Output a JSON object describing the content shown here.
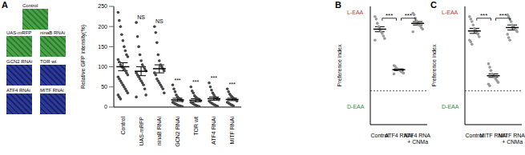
{
  "panel_labels": [
    "A",
    "B",
    "C"
  ],
  "images": [
    {
      "label": "Control",
      "color": "#3a9a3a"
    },
    {
      "label": "UAS-mRFP",
      "color": "#3a9a3a"
    },
    {
      "label": "ninaB RNAi",
      "color": "#3a9a3a"
    },
    {
      "label": "GCN2 RNAi",
      "color": "#1b2a8c"
    },
    {
      "label": "TOR wt",
      "color": "#1b2a8c"
    },
    {
      "label": "ATF4 RNAi",
      "color": "#1b2a8c"
    },
    {
      "label": "MITF RNAi",
      "color": "#1b2a8c"
    }
  ],
  "chart_data": [
    {
      "type": "scatter",
      "categories": [
        "Control",
        "UAS-mRFP",
        "ninaB RNAi",
        "GCN2 RNAi",
        "TOR wt",
        "ATF4 RNAi",
        "MITF RNAi"
      ],
      "ylabel": "Relative GFP intensity(%)",
      "ylim": [
        0,
        250
      ],
      "yticks": [
        0,
        50,
        100,
        150,
        200,
        250
      ],
      "color": "#444444",
      "points": [
        [
          235,
          215,
          200,
          180,
          165,
          150,
          140,
          130,
          125,
          118,
          112,
          105,
          100,
          98,
          95,
          90,
          85,
          80,
          75,
          70,
          65,
          60,
          55,
          50,
          45,
          40,
          35,
          30,
          25,
          20
        ],
        [
          210,
          175,
          150,
          130,
          115,
          105,
          100,
          95,
          90,
          85,
          80,
          75,
          70,
          65,
          60,
          55,
          45,
          30,
          25
        ],
        [
          200,
          185,
          160,
          130,
          115,
          105,
          100,
          95,
          90,
          85,
          80,
          70,
          65,
          60,
          55,
          50,
          45,
          35
        ],
        [
          55,
          45,
          38,
          30,
          25,
          22,
          20,
          18,
          15,
          12,
          10,
          8,
          7,
          5,
          4,
          3,
          2,
          1
        ],
        [
          50,
          40,
          35,
          28,
          25,
          22,
          20,
          18,
          15,
          12,
          10,
          8,
          6,
          5,
          3,
          2,
          1
        ],
        [
          60,
          50,
          42,
          35,
          30,
          25,
          22,
          20,
          18,
          15,
          12,
          10,
          8,
          6,
          5,
          3,
          2
        ],
        [
          45,
          38,
          32,
          28,
          25,
          22,
          20,
          18,
          15,
          12,
          10,
          8,
          6,
          5,
          3
        ]
      ],
      "means": [
        100,
        89,
        95,
        18,
        17,
        21,
        19
      ],
      "errors": [
        10,
        11,
        10,
        4,
        4,
        4,
        3
      ],
      "category_annotations": [
        null,
        "NS",
        "NS",
        "***",
        "***",
        "***",
        "***"
      ]
    },
    {
      "type": "scatter",
      "categories": [
        "Control",
        "ATF4 RNAi",
        "ATF4 RNAi + CNMa"
      ],
      "ylabel": "Preference index",
      "ylim": [
        -0.4,
        1
      ],
      "yticks": [],
      "tick_labels": "x",
      "hline": 0,
      "color": "#9a9a9a",
      "annotations": [
        {
          "text": "L-EAA",
          "color": "#d0312d"
        },
        {
          "text": "D-EAA",
          "color": "#2e8b3e"
        }
      ],
      "points": [
        [
          0.88,
          0.85,
          0.8,
          0.76,
          0.73,
          0.7,
          0.68,
          0.65,
          0.62,
          0.6
        ],
        [
          0.3,
          0.29,
          0.27,
          0.26,
          0.25,
          0.24,
          0.23,
          0.22,
          0.21,
          0.2
        ],
        [
          0.92,
          0.9,
          0.86,
          0.83,
          0.8,
          0.78,
          0.77,
          0.75,
          0.73,
          0.7
        ]
      ],
      "means": [
        0.73,
        0.25,
        0.8
      ],
      "errors": [
        0.03,
        0.01,
        0.02
      ],
      "significance": [
        {
          "from": 0,
          "to": 1,
          "label": "***"
        },
        {
          "from": 1,
          "to": 2,
          "label": "***"
        }
      ]
    },
    {
      "type": "scatter",
      "categories": [
        "Control",
        "MITF RNAi",
        "MITF RNAi + CNMa"
      ],
      "ylabel": "Preference index",
      "ylim": [
        -0.4,
        1
      ],
      "yticks": [],
      "tick_labels": "x",
      "hline": 0,
      "color": "#9a9a9a",
      "annotations": [
        {
          "text": "L-EAA",
          "color": "#d0312d"
        },
        {
          "text": "D-EAA",
          "color": "#2e8b3e"
        }
      ],
      "points": [
        [
          0.88,
          0.85,
          0.82,
          0.78,
          0.74,
          0.72,
          0.7,
          0.67,
          0.64,
          0.6,
          0.58,
          0.55
        ],
        [
          0.32,
          0.28,
          0.24,
          0.2,
          0.18,
          0.16,
          0.14,
          0.12,
          0.1,
          0.08,
          0.06
        ],
        [
          0.9,
          0.88,
          0.85,
          0.82,
          0.78,
          0.76,
          0.74,
          0.72,
          0.7,
          0.67,
          0.63,
          0.6
        ]
      ],
      "means": [
        0.71,
        0.18,
        0.75
      ],
      "errors": [
        0.03,
        0.02,
        0.03
      ],
      "significance": [
        {
          "from": 0,
          "to": 1,
          "label": "***"
        },
        {
          "from": 1,
          "to": 2,
          "label": "***"
        }
      ]
    }
  ]
}
